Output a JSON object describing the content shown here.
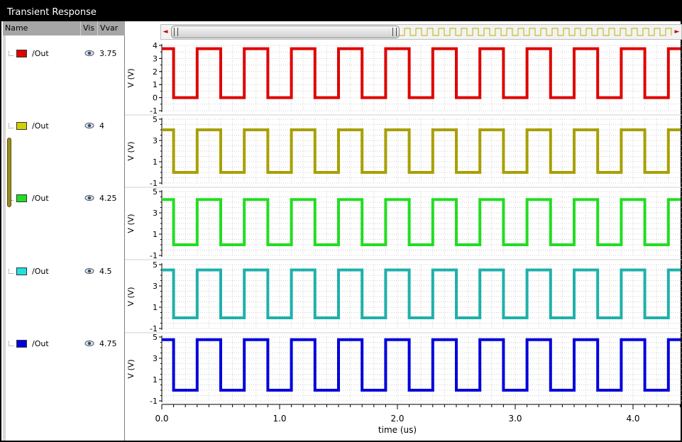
{
  "window": {
    "title": "Transient Response"
  },
  "legend": {
    "headers": {
      "name": "Name",
      "vis": "Vis",
      "vvar": "Vvar"
    },
    "rows": [
      {
        "name": "/Out",
        "vvar": "3.75",
        "color": "#e00000"
      },
      {
        "name": "/Out",
        "vvar": "4",
        "color": "#d2d000"
      },
      {
        "name": "/Out",
        "vvar": "4.25",
        "color": "#22dd22"
      },
      {
        "name": "/Out",
        "vvar": "4.5",
        "color": "#22e0e0"
      },
      {
        "name": "/Out",
        "vvar": "4.75",
        "color": "#0000dd"
      }
    ]
  },
  "scrollbar": {
    "left_arrow": "◄",
    "right_arrow": "►"
  },
  "chart_data": {
    "type": "line",
    "xlabel": "time (us)",
    "x_ticks": [
      "0.0",
      "1.0",
      "2.0",
      "3.0",
      "4.0"
    ],
    "xlim": [
      0,
      4.4
    ],
    "grid": true,
    "subplots": [
      {
        "ylabel": "V (V)",
        "ylim": [
          -1,
          4
        ],
        "y_ticks": [
          "4",
          "3",
          "2",
          "1",
          "0",
          "-1"
        ],
        "color": "#e00000",
        "series_name": "/Out",
        "high": 3.75,
        "low": 0.0,
        "period": 0.4,
        "duty": 0.5,
        "rise_start": 0.3
      },
      {
        "ylabel": "V (V)",
        "ylim": [
          -1,
          5
        ],
        "y_ticks": [
          "5",
          "3",
          "1",
          "-1"
        ],
        "color": "#a8a000",
        "series_name": "/Out",
        "high": 4.0,
        "low": 0.0,
        "period": 0.4,
        "duty": 0.5,
        "rise_start": 0.3
      },
      {
        "ylabel": "V (V)",
        "ylim": [
          -1,
          5
        ],
        "y_ticks": [
          "5",
          "3",
          "1",
          "-1"
        ],
        "color": "#22dd22",
        "series_name": "/Out",
        "high": 4.25,
        "low": 0.0,
        "period": 0.4,
        "duty": 0.5,
        "rise_start": 0.3
      },
      {
        "ylabel": "V (V)",
        "ylim": [
          -1,
          5
        ],
        "y_ticks": [
          "5",
          "3",
          "1",
          "-1"
        ],
        "color": "#1fb0aa",
        "series_name": "/Out",
        "high": 4.5,
        "low": 0.0,
        "period": 0.4,
        "duty": 0.5,
        "rise_start": 0.3
      },
      {
        "ylabel": "V (V)",
        "ylim": [
          -1,
          5
        ],
        "y_ticks": [
          "5",
          "3",
          "1",
          "-1"
        ],
        "color": "#0000dd",
        "series_name": "/Out",
        "high": 4.75,
        "low": 0.0,
        "period": 0.4,
        "duty": 0.5,
        "rise_start": 0.3
      }
    ]
  }
}
